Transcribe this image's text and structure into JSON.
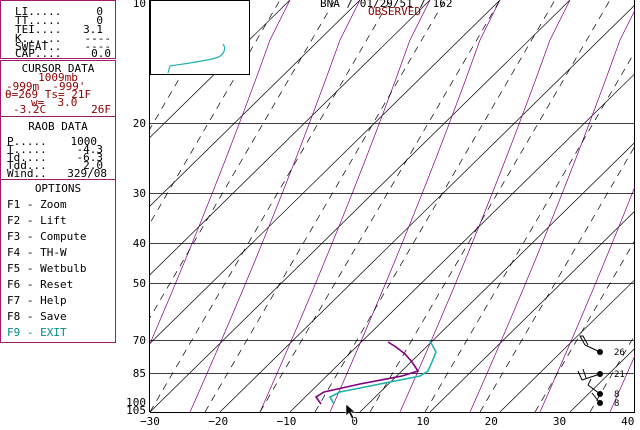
{
  "header": {
    "station": "BNA",
    "date": "01/29/51",
    "value": "162",
    "mode": "OBSERVED"
  },
  "indices": {
    "li": {
      "label": "LI.....",
      "value": "0"
    },
    "tt": {
      "label": "TT.....",
      "value": "0"
    },
    "tei": {
      "label": "TEI....",
      "value": "3.1"
    },
    "k": {
      "label": "K......",
      "value": "----"
    },
    "sweat": {
      "label": "SWEAT..",
      "value": "----"
    },
    "cap": {
      "label": "CAP....",
      "value": "0.0"
    }
  },
  "cursor": {
    "title": "CURSOR DATA",
    "pressure": "1009mb",
    "heights": "-999m  -999'",
    "theta_ts": "θ=269 Ts= 21F",
    "w": "w=  3.0",
    "temps_c": "-3.2C",
    "temps_f": "26F"
  },
  "raob": {
    "title": "RAOB DATA",
    "p": {
      "label": "P.....",
      "value": "1000"
    },
    "t": {
      "label": "T.....",
      "value": "-4.3"
    },
    "td": {
      "label": "Td....",
      "value": "-6.3"
    },
    "tdd": {
      "label": "Tdd...",
      "value": "2.0"
    },
    "wind": {
      "label": "Wind..",
      "value": "329/08"
    }
  },
  "options": {
    "title": "OPTIONS",
    "items": [
      {
        "key": "F1",
        "label": "Zoom"
      },
      {
        "key": "F2",
        "label": "Lift"
      },
      {
        "key": "F3",
        "label": "Compute"
      },
      {
        "key": "F4",
        "label": "TH-W"
      },
      {
        "key": "F5",
        "label": "Wetbulb"
      },
      {
        "key": "F6",
        "label": "Reset"
      },
      {
        "key": "F7",
        "label": "Help"
      },
      {
        "key": "F8",
        "label": "Save"
      },
      {
        "key": "F9",
        "label": "EXIT"
      }
    ]
  },
  "chart_data": {
    "type": "line",
    "pressure_levels": [
      10,
      20,
      30,
      40,
      50,
      70,
      85,
      100,
      105
    ],
    "x_ticks": [
      -30,
      -20,
      -10,
      0,
      10,
      20,
      30,
      40
    ],
    "xlim": [
      -30,
      40
    ],
    "wind_speeds": [
      26,
      21,
      8,
      8
    ],
    "series": [
      {
        "color": "#800080",
        "values": []
      },
      {
        "color": "#20b2aa",
        "values": []
      }
    ]
  },
  "colors": {
    "border": "#a0186a",
    "dark_red": "#8b0000",
    "temp": "#800080",
    "dewpoint": "#20b2aa",
    "exit": "#008b8b"
  }
}
